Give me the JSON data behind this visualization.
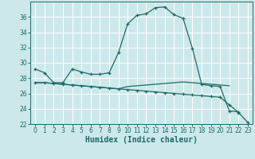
{
  "xlabel": "Humidex (Indice chaleur)",
  "background_color": "#cde8eb",
  "line_color": "#1a6b65",
  "grid_color": "#ffffff",
  "x": [
    0,
    1,
    2,
    3,
    4,
    5,
    6,
    7,
    8,
    9,
    10,
    11,
    12,
    13,
    14,
    15,
    16,
    17,
    18,
    19,
    20,
    21,
    22,
    23
  ],
  "line1_y": [
    29.2,
    28.7,
    27.4,
    27.4,
    29.2,
    28.8,
    28.5,
    28.5,
    28.7,
    31.3,
    35.1,
    36.2,
    36.4,
    37.2,
    37.3,
    36.3,
    35.8,
    31.9,
    27.2,
    27.0,
    26.9,
    23.7,
    23.6,
    null
  ],
  "line2_y": [
    27.4,
    27.4,
    27.3,
    27.2,
    27.1,
    27.0,
    26.9,
    26.8,
    26.7,
    26.6,
    26.5,
    26.4,
    26.3,
    26.2,
    26.1,
    26.0,
    25.9,
    25.8,
    25.7,
    25.6,
    25.5,
    24.5,
    23.5,
    22.2
  ],
  "line3_y": [
    27.4,
    27.4,
    27.3,
    27.2,
    27.1,
    27.0,
    26.9,
    26.8,
    26.7,
    26.6,
    26.9,
    27.0,
    27.1,
    27.2,
    27.3,
    27.4,
    27.5,
    27.4,
    27.3,
    27.2,
    27.1,
    27.0,
    null,
    null
  ],
  "ylim": [
    22,
    38
  ],
  "xlim": [
    -0.5,
    23.5
  ],
  "yticks": [
    22,
    24,
    26,
    28,
    30,
    32,
    34,
    36
  ],
  "xticks": [
    0,
    1,
    2,
    3,
    4,
    5,
    6,
    7,
    8,
    9,
    10,
    11,
    12,
    13,
    14,
    15,
    16,
    17,
    18,
    19,
    20,
    21,
    22,
    23
  ],
  "tick_fontsize": 5.5,
  "xlabel_fontsize": 7
}
